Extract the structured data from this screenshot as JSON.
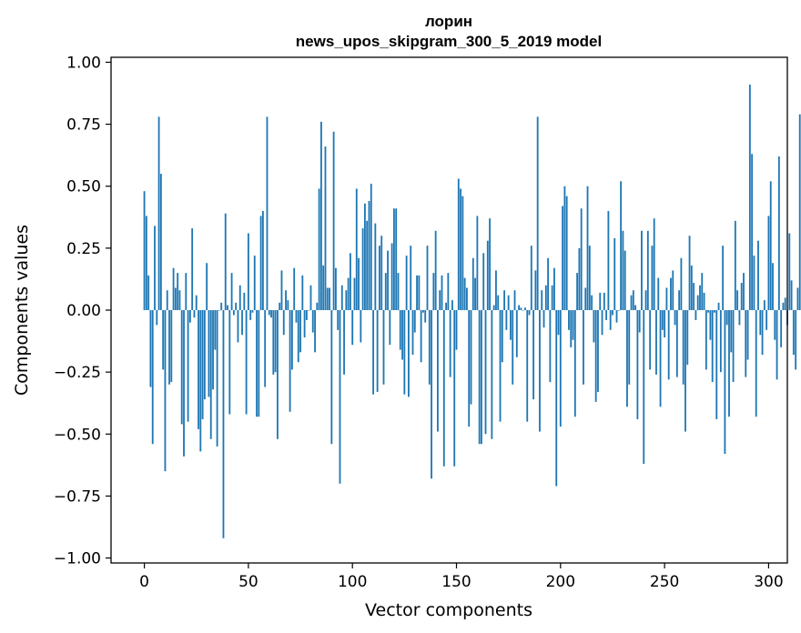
{
  "chart_data": {
    "type": "bar",
    "title_lines": [
      "лорин",
      "news_upos_skipgram_300_5_2019 model"
    ],
    "xlabel": "Vector components",
    "ylabel": "Components values",
    "xlim": [
      -16,
      309
    ],
    "ylim": [
      -1.02,
      1.02
    ],
    "xticks": [
      0,
      50,
      100,
      150,
      200,
      250,
      300
    ],
    "xtick_labels": [
      "0",
      "50",
      "100",
      "150",
      "200",
      "250",
      "300"
    ],
    "yticks": [
      1.0,
      0.75,
      0.5,
      0.25,
      0.0,
      -0.25,
      -0.5,
      -0.75,
      -1.0
    ],
    "ytick_labels": [
      "1.00",
      "0.75",
      "0.50",
      "0.25",
      "0.00",
      "−0.25",
      "−0.50",
      "−0.75",
      "−1.00"
    ],
    "bar_color": "#1f77b4",
    "values": [
      0.48,
      0.38,
      0.14,
      -0.31,
      -0.54,
      0.34,
      -0.06,
      0.78,
      0.55,
      -0.24,
      -0.65,
      0.08,
      -0.3,
      -0.29,
      0.17,
      0.09,
      0.15,
      0.08,
      -0.46,
      -0.59,
      0.15,
      -0.45,
      -0.05,
      0.33,
      -0.03,
      0.06,
      -0.48,
      -0.57,
      -0.44,
      -0.36,
      0.19,
      -0.35,
      -0.52,
      -0.32,
      -0.16,
      -0.55,
      0.0,
      0.03,
      -0.92,
      0.39,
      0.02,
      -0.42,
      0.15,
      -0.02,
      0.03,
      -0.13,
      0.1,
      -0.1,
      0.07,
      -0.42,
      0.31,
      -0.04,
      -0.01,
      0.22,
      -0.43,
      -0.43,
      0.38,
      0.4,
      -0.31,
      0.78,
      -0.02,
      -0.03,
      -0.26,
      -0.25,
      -0.52,
      0.03,
      0.16,
      -0.1,
      0.08,
      0.04,
      -0.41,
      -0.24,
      0.17,
      -0.05,
      -0.21,
      -0.17,
      0.14,
      -0.11,
      -0.04,
      0.0,
      0.1,
      -0.09,
      -0.17,
      0.03,
      0.49,
      0.76,
      0.18,
      0.66,
      0.09,
      0.09,
      -0.54,
      0.72,
      0.17,
      -0.08,
      -0.7,
      0.1,
      -0.26,
      0.08,
      0.13,
      0.23,
      -0.14,
      0.13,
      0.49,
      0.21,
      -0.13,
      0.33,
      0.43,
      0.36,
      0.44,
      0.51,
      -0.34,
      0.35,
      -0.33,
      0.26,
      0.3,
      -0.3,
      0.15,
      0.24,
      -0.14,
      0.27,
      0.41,
      0.41,
      0.15,
      -0.16,
      -0.2,
      -0.34,
      0.22,
      -0.35,
      0.26,
      -0.18,
      -0.09,
      0.14,
      0.14,
      -0.21,
      -0.01,
      -0.05,
      0.26,
      -0.3,
      -0.68,
      0.15,
      0.32,
      -0.49,
      0.08,
      0.14,
      -0.63,
      0.03,
      0.15,
      -0.27,
      0.04,
      -0.63,
      -0.16,
      0.53,
      0.49,
      0.46,
      0.13,
      0.09,
      -0.47,
      -0.38,
      0.21,
      0.13,
      0.38,
      -0.54,
      -0.54,
      0.23,
      -0.5,
      0.28,
      0.37,
      -0.52,
      0.02,
      0.16,
      0.06,
      -0.45,
      -0.21,
      0.08,
      -0.08,
      0.06,
      -0.12,
      -0.3,
      0.08,
      -0.19,
      0.02,
      0.01,
      0.0,
      0.01,
      -0.45,
      -0.02,
      0.26,
      -0.36,
      0.16,
      0.78,
      -0.49,
      0.08,
      -0.07,
      0.1,
      0.21,
      -0.29,
      0.1,
      0.17,
      -0.71,
      -0.1,
      -0.47,
      0.42,
      0.5,
      0.46,
      -0.08,
      -0.15,
      -0.12,
      -0.43,
      0.15,
      0.25,
      0.41,
      -0.3,
      0.09,
      0.5,
      0.26,
      0.06,
      -0.13,
      -0.37,
      -0.33,
      0.07,
      -0.1,
      0.07,
      -0.04,
      0.4,
      -0.08,
      -0.02,
      0.29,
      -0.05,
      0.0,
      0.52,
      0.32,
      0.24,
      -0.39,
      -0.3,
      0.06,
      0.08,
      0.02,
      -0.44,
      -0.09,
      0.32,
      -0.62,
      0.08,
      0.32,
      -0.24,
      0.26,
      0.37,
      -0.26,
      0.13,
      -0.39,
      -0.08,
      -0.11,
      0.09,
      -0.28,
      0.13,
      0.16,
      -0.06,
      -0.27,
      0.08,
      0.21,
      -0.3,
      -0.49,
      -0.22,
      0.3,
      0.18,
      0.11,
      -0.04,
      0.06,
      0.1,
      0.15,
      0.07,
      -0.24,
      -0.01,
      -0.12,
      -0.29,
      -0.01,
      -0.44,
      0.03,
      -0.25,
      0.26,
      -0.58,
      -0.06,
      -0.43,
      -0.17,
      -0.29,
      0.36,
      0.08,
      -0.06,
      0.11,
      0.15,
      -0.27,
      -0.2,
      0.91,
      0.63,
      0.22,
      -0.43,
      0.28,
      -0.1,
      -0.18,
      0.04,
      -0.08,
      0.38,
      0.52,
      0.19,
      -0.12,
      -0.28,
      0.62,
      -0.15,
      0.03,
      0.05,
      -0.06,
      0.31,
      0.12,
      -0.18,
      -0.24,
      0.09,
      0.79,
      -0.08
    ]
  }
}
